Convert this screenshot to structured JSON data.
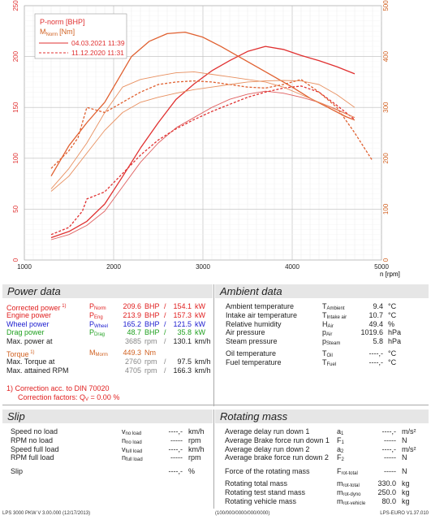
{
  "chart_data": {
    "type": "line",
    "xlabel": "n [rpm]",
    "xlim": [
      1000,
      5000
    ],
    "x_ticks": [
      "1000",
      "2000",
      "3000",
      "4000",
      "5000"
    ],
    "y_left_lim": [
      0,
      250
    ],
    "y_left_ticks": [
      "0",
      "50",
      "100",
      "150",
      "200",
      "250"
    ],
    "y_right_lim": [
      0,
      500
    ],
    "y_right_ticks": [
      "0",
      "100",
      "200",
      "300",
      "400",
      "500"
    ],
    "legend": {
      "line1": "P-norm [BHP]",
      "line2": "M",
      "line2_sub": "Norm",
      "line2_unit": "[Nm]",
      "run1": "04.03.2021 11:39",
      "run2": "11.12.2020 11:31"
    },
    "colors": {
      "power": "#e03030",
      "torque": "#e07040",
      "grid": "#cccccc"
    },
    "series": [
      {
        "name": "04.03.2021 11:39",
        "kind": "power",
        "style": "solid",
        "x": [
          1300,
          1500,
          1700,
          1900,
          2100,
          2300,
          2500,
          2700,
          2900,
          3100,
          3300,
          3500,
          3700,
          3900,
          4100,
          4300,
          4500,
          4700
        ],
        "y": [
          22,
          28,
          38,
          55,
          82,
          110,
          135,
          158,
          173,
          186,
          196,
          205,
          210,
          207,
          201,
          196,
          190,
          183
        ]
      },
      {
        "name": "04.03.2021 11:39",
        "kind": "power_wheel",
        "style": "solid",
        "x": [
          1300,
          1500,
          1700,
          1900,
          2100,
          2300,
          2500,
          2700,
          2900,
          3100,
          3300,
          3500,
          3700,
          3900,
          4100,
          4300,
          4500,
          4700
        ],
        "y": [
          20,
          25,
          34,
          48,
          72,
          96,
          115,
          130,
          140,
          150,
          158,
          163,
          166,
          164,
          160,
          155,
          148,
          140
        ]
      },
      {
        "name": "11.12.2020 11:31",
        "kind": "power",
        "style": "dashed",
        "x": [
          1300,
          1500,
          1650,
          1700,
          1900,
          2100,
          2300,
          2500,
          2700,
          2900,
          3100,
          3300,
          3500,
          3700,
          3900,
          4100,
          4300,
          4500,
          4700
        ],
        "y": [
          25,
          32,
          48,
          60,
          67,
          85,
          103,
          118,
          129,
          138,
          146,
          153,
          160,
          165,
          169,
          171,
          165,
          152,
          138
        ]
      },
      {
        "name": "04.03.2021 11:39",
        "kind": "torque",
        "style": "solid",
        "x": [
          1300,
          1500,
          1700,
          1900,
          2100,
          2200,
          2400,
          2600,
          2800,
          3000,
          3200,
          3400,
          3600,
          3800,
          4000,
          4200,
          4400,
          4600,
          4700
        ],
        "y": [
          165,
          225,
          270,
          310,
          370,
          400,
          430,
          445,
          448,
          438,
          420,
          400,
          380,
          360,
          340,
          318,
          300,
          282,
          275
        ]
      },
      {
        "name": "04.03.2021 11:39",
        "kind": "torque_low",
        "style": "solid",
        "x": [
          1300,
          1500,
          1700,
          1900,
          2100,
          2300,
          2500,
          2700,
          2900,
          3100,
          3300,
          3500,
          3700,
          3900,
          4100,
          4300,
          4500,
          4700
        ],
        "y": [
          140,
          180,
          230,
          290,
          340,
          355,
          362,
          368,
          370,
          365,
          360,
          355,
          350,
          340,
          325,
          310,
          295,
          280
        ]
      },
      {
        "name": "11.12.2020 11:31",
        "kind": "torque",
        "style": "dashed",
        "x": [
          1300,
          1500,
          1600,
          1700,
          1900,
          2100,
          2300,
          2500,
          2700,
          2900,
          3100,
          3300,
          3500,
          3700,
          3900,
          4100,
          4300,
          4500,
          4700,
          4900
        ],
        "y": [
          180,
          215,
          240,
          300,
          290,
          310,
          330,
          345,
          350,
          352,
          350,
          345,
          340,
          338,
          345,
          355,
          330,
          300,
          250,
          195
        ]
      },
      {
        "name": "11.12.2020 11:31",
        "kind": "torque_low",
        "style": "solid",
        "x": [
          1300,
          1500,
          1700,
          1900,
          2100,
          2300,
          2500,
          2700,
          2900,
          3100,
          3300,
          3500,
          3700,
          3900,
          4100,
          4300,
          4500,
          4700
        ],
        "y": [
          135,
          165,
          210,
          255,
          290,
          310,
          320,
          328,
          335,
          340,
          345,
          350,
          352,
          353,
          352,
          345,
          325,
          300
        ]
      }
    ]
  },
  "power": {
    "title": "Power data",
    "rows": [
      {
        "label": "Corrected power",
        "sup": "1)",
        "sym": "P",
        "sub": "Norm",
        "v1": "209.6",
        "u1": "BHP",
        "sep": "/",
        "v2": "154.1",
        "u2": "kW",
        "cls": "red"
      },
      {
        "label": "Engine power",
        "sup": "",
        "sym": "P",
        "sub": "Eng",
        "v1": "213.9",
        "u1": "BHP",
        "sep": "/",
        "v2": "157.3",
        "u2": "kW",
        "cls": "red"
      },
      {
        "label": "Wheel power",
        "sup": "",
        "sym": "P",
        "sub": "Wheel",
        "v1": "165.2",
        "u1": "BHP",
        "sep": "/",
        "v2": "121.5",
        "u2": "kW",
        "cls": "blue"
      },
      {
        "label": "Drag power",
        "sup": "",
        "sym": "P",
        "sub": "Drag",
        "v1": "48.7",
        "u1": "BHP",
        "sep": "/",
        "v2": "35.8",
        "u2": "kW",
        "cls": "green"
      },
      {
        "label": "Max. power at",
        "sup": "",
        "sym": "",
        "sub": "",
        "v1": "3685",
        "u1": "rpm",
        "sep": "/",
        "v2": "130.1",
        "u2": "km/h",
        "cls": ""
      }
    ],
    "torque_rows": [
      {
        "label": "Torque",
        "sup": "1)",
        "sym": "M",
        "sub": "Morm",
        "v1": "449.3",
        "u1": "Nm",
        "sep": "",
        "v2": "",
        "u2": "",
        "cls": "orange"
      },
      {
        "label": "Max. Torque at",
        "sup": "",
        "sym": "",
        "sub": "",
        "v1": "2760",
        "u1": "rpm",
        "sep": "/",
        "v2": "97.5",
        "u2": "km/h",
        "cls": ""
      },
      {
        "label": "Max. attained RPM",
        "sup": "",
        "sym": "",
        "sub": "",
        "v1": "4705",
        "u1": "rpm",
        "sep": "/",
        "v2": "166.3",
        "u2": "km/h",
        "cls": ""
      }
    ],
    "correction_line1": "1) Correction acc. to DIN 70020",
    "correction_line2": "Correction factors: Q",
    "correction_sub": "V",
    "correction_value": " =  0.00 %"
  },
  "ambient": {
    "title": "Ambient data",
    "rows": [
      {
        "label": "Ambient temperature",
        "sym": "T",
        "sub": "Ambient",
        "val": "9.4",
        "unit": "°C"
      },
      {
        "label": "Intake air temperature",
        "sym": "T",
        "sub": "Intake air",
        "val": "10.7",
        "unit": "°C"
      },
      {
        "label": "Relative humidity",
        "sym": "H",
        "sub": "Air",
        "val": "49.4",
        "unit": "%"
      },
      {
        "label": "Air pressure",
        "sym": "p",
        "sub": "Air",
        "val": "1019.6",
        "unit": "hPa"
      },
      {
        "label": "Steam pressure",
        "sym": "p",
        "sub": "Steam",
        "val": "5.8",
        "unit": "hPa"
      }
    ],
    "rows2": [
      {
        "label": "Oil temperature",
        "sym": "T",
        "sub": "Oil",
        "val": "----,-",
        "unit": "°C"
      },
      {
        "label": "Fuel temperature",
        "sym": "T",
        "sub": "Fuel",
        "val": "----,-",
        "unit": "°C"
      }
    ]
  },
  "slip": {
    "title": "Slip",
    "rows": [
      {
        "label": "Speed no load",
        "sym": "v",
        "sub": "no load",
        "val": "----,-",
        "unit": "km/h"
      },
      {
        "label": "RPM no load",
        "sym": "n",
        "sub": "no load",
        "val": "-----",
        "unit": "rpm"
      },
      {
        "label": "Speed full load",
        "sym": "v",
        "sub": "full load",
        "val": "----,-",
        "unit": "km/h"
      },
      {
        "label": "RPM full load",
        "sym": "n",
        "sub": "full load",
        "val": "-----",
        "unit": "rpm"
      }
    ],
    "slip_label": "Slip",
    "slip_val": "----,-",
    "slip_unit": "%"
  },
  "rotating": {
    "title": "Rotating mass",
    "rows": [
      {
        "label": "Average delay run down 1",
        "sym": "a",
        "sub": "1",
        "val": "----,-",
        "unit": "m/s²"
      },
      {
        "label": "Average Brake force run down 1",
        "sym": "F",
        "sub": "1",
        "val": "-----",
        "unit": "N"
      },
      {
        "label": "Average delay run down 2",
        "sym": "a",
        "sub": "2",
        "val": "----,-",
        "unit": "m/s²"
      },
      {
        "label": "Average brake force run down 2",
        "sym": "F",
        "sub": "2",
        "val": "-----",
        "unit": "N"
      }
    ],
    "force_row": {
      "label": "Force of the rotating mass",
      "sym": "F",
      "sub": "rot-total",
      "val": "-----",
      "unit": "N"
    },
    "mass_rows": [
      {
        "label": "Rotating total mass",
        "sym": "m",
        "sub": "rot-total",
        "val": "330.0",
        "unit": "kg"
      },
      {
        "label": "Rotating test stand mass",
        "sym": "m",
        "sub": "rot-dyno",
        "val": "250.0",
        "unit": "kg"
      },
      {
        "label": "Rotating vehicle mass",
        "sym": "m",
        "sub": "rot-vehicle",
        "val": "80.0",
        "unit": "kg"
      }
    ]
  },
  "footer": {
    "left": "LPS 3000 PKW V 3.00.000 (12/17/2013)",
    "center": "(100/000/0000/000/0000)",
    "right": "LPS-EURO V1.37.010"
  }
}
